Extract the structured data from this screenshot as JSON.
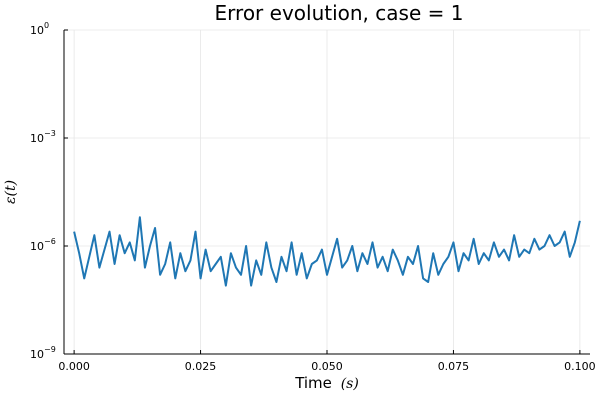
{
  "chart_data": {
    "type": "line",
    "title": "Error evolution, case = 1",
    "xlabel": "Time",
    "xlabel_unit": "(s)",
    "ylabel": "ε(t)",
    "xlim": [
      -0.002,
      0.102
    ],
    "ylim_log10": [
      -9,
      0
    ],
    "y_scale": "log",
    "x_ticks": [
      "0.000",
      "0.025",
      "0.050",
      "0.075",
      "0.100"
    ],
    "x_tick_values": [
      0,
      0.025,
      0.05,
      0.075,
      0.1
    ],
    "y_ticks": [
      {
        "base": "10",
        "exp": "−9",
        "log10": -9
      },
      {
        "base": "10",
        "exp": "−6",
        "log10": -6
      },
      {
        "base": "10",
        "exp": "−3",
        "log10": -3
      },
      {
        "base": "10",
        "exp": "0",
        "log10": 0
      }
    ],
    "grid": true,
    "legend": false,
    "series": [
      {
        "color": "#1f77b4",
        "x": [
          0.0,
          0.001,
          0.002,
          0.003,
          0.004,
          0.005,
          0.006,
          0.007,
          0.008,
          0.009,
          0.01,
          0.011,
          0.012,
          0.013,
          0.014,
          0.015,
          0.016,
          0.017,
          0.018,
          0.019,
          0.02,
          0.021,
          0.022,
          0.023,
          0.024,
          0.025,
          0.026,
          0.027,
          0.028,
          0.029,
          0.03,
          0.031,
          0.032,
          0.033,
          0.034,
          0.035,
          0.036,
          0.037,
          0.038,
          0.039,
          0.04,
          0.041,
          0.042,
          0.043,
          0.044,
          0.045,
          0.046,
          0.047,
          0.048,
          0.049,
          0.05,
          0.051,
          0.052,
          0.053,
          0.054,
          0.055,
          0.056,
          0.057,
          0.058,
          0.059,
          0.06,
          0.061,
          0.062,
          0.063,
          0.064,
          0.065,
          0.066,
          0.067,
          0.068,
          0.069,
          0.07,
          0.071,
          0.072,
          0.073,
          0.074,
          0.075,
          0.076,
          0.077,
          0.078,
          0.079,
          0.08,
          0.081,
          0.082,
          0.083,
          0.084,
          0.085,
          0.086,
          0.087,
          0.088,
          0.089,
          0.09,
          0.091,
          0.092,
          0.093,
          0.094,
          0.095,
          0.096,
          0.097,
          0.098,
          0.099,
          0.1
        ],
        "log10_y": [
          -5.6,
          -6.2,
          -6.9,
          -6.3,
          -5.7,
          -6.6,
          -6.1,
          -5.6,
          -6.5,
          -5.7,
          -6.2,
          -5.9,
          -6.4,
          -5.2,
          -6.6,
          -6.0,
          -5.5,
          -6.8,
          -6.5,
          -5.9,
          -6.9,
          -6.2,
          -6.7,
          -6.4,
          -5.6,
          -6.9,
          -6.1,
          -6.7,
          -6.5,
          -6.3,
          -7.1,
          -6.2,
          -6.6,
          -6.8,
          -6.0,
          -7.1,
          -6.4,
          -6.8,
          -5.9,
          -6.6,
          -7.0,
          -6.3,
          -6.7,
          -5.9,
          -6.8,
          -6.2,
          -6.9,
          -6.5,
          -6.4,
          -6.1,
          -6.8,
          -6.3,
          -5.8,
          -6.6,
          -6.4,
          -6.0,
          -6.7,
          -6.2,
          -6.5,
          -5.9,
          -6.6,
          -6.3,
          -6.7,
          -6.1,
          -6.4,
          -6.8,
          -6.3,
          -6.5,
          -6.0,
          -6.9,
          -7.0,
          -6.2,
          -6.8,
          -6.5,
          -6.3,
          -5.9,
          -6.7,
          -6.2,
          -6.4,
          -5.8,
          -6.5,
          -6.2,
          -6.4,
          -5.9,
          -6.3,
          -6.1,
          -6.4,
          -5.7,
          -6.3,
          -6.1,
          -6.2,
          -5.8,
          -6.1,
          -6.0,
          -5.7,
          -6.0,
          -5.9,
          -5.6,
          -6.3,
          -5.9,
          -5.3
        ]
      }
    ]
  }
}
